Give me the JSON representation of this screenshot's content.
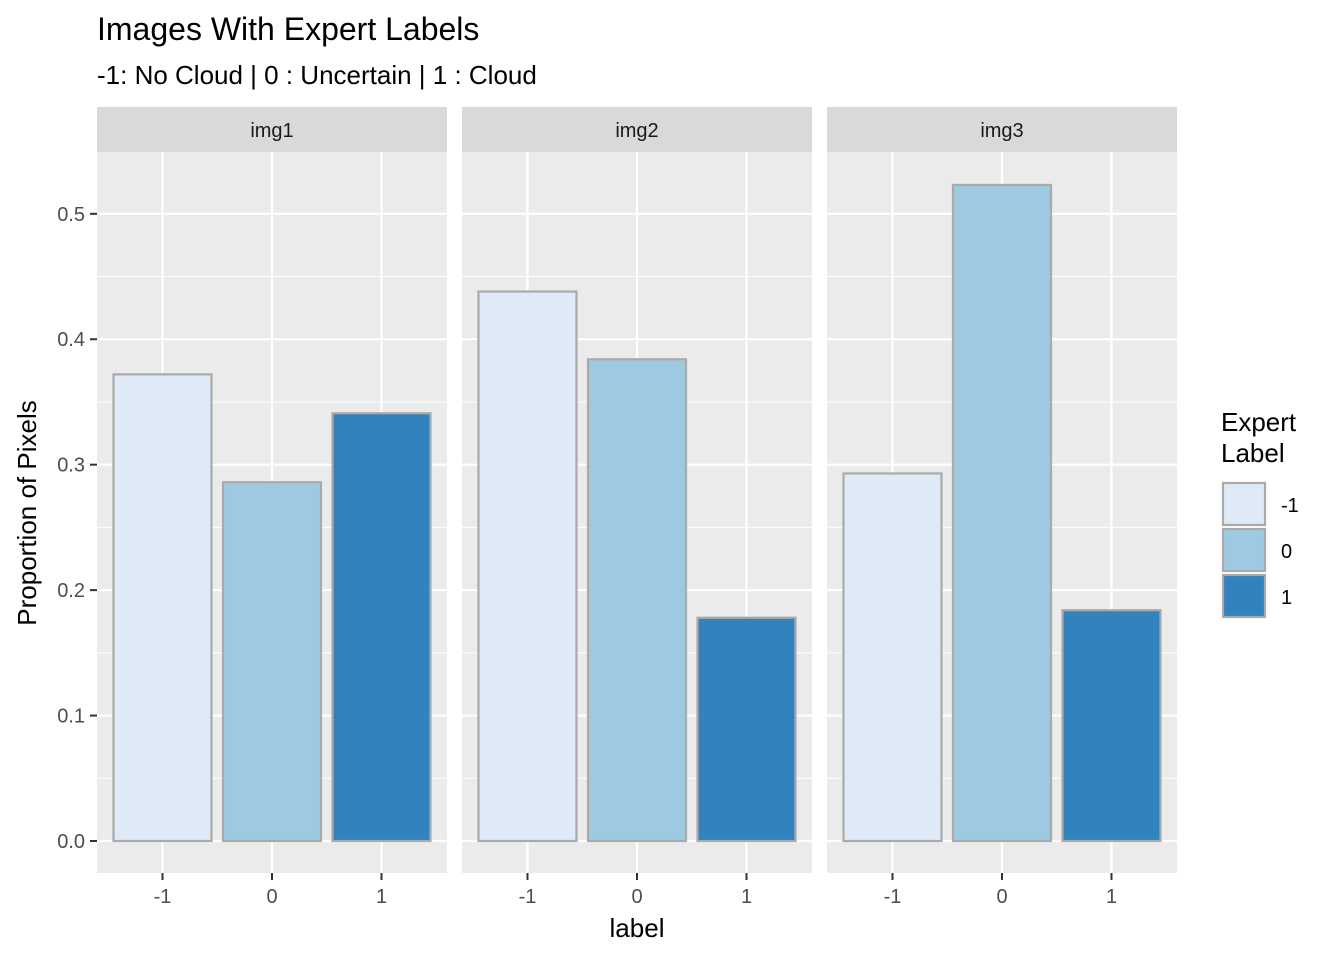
{
  "chart_data": {
    "type": "bar",
    "title": "Images With Expert Labels",
    "subtitle": "-1: No Cloud | 0 : Uncertain | 1 : Cloud",
    "xlabel": "label",
    "ylabel": "Proportion of Pixels",
    "categories": [
      "-1",
      "0",
      "1"
    ],
    "ylim": [
      0,
      0.55
    ],
    "yticks": [
      "0.0",
      "0.1",
      "0.2",
      "0.3",
      "0.4",
      "0.5"
    ],
    "grid": true,
    "legend": {
      "title_lines": [
        "Expert",
        "Label"
      ],
      "position": "right",
      "entries": [
        "-1",
        "0",
        "1"
      ]
    },
    "colors": {
      "-1": "#deebf7",
      "0": "#9ecae1",
      "1": "#3182bd",
      "bar_border": "#aaaaaa",
      "panel_bg": "#ebebeb",
      "strip_bg": "#d9d9d9",
      "grid": "#ffffff"
    },
    "facets": [
      {
        "name": "img1",
        "values": [
          0.372,
          0.286,
          0.341
        ]
      },
      {
        "name": "img2",
        "values": [
          0.438,
          0.384,
          0.178
        ]
      },
      {
        "name": "img3",
        "values": [
          0.293,
          0.523,
          0.184
        ]
      }
    ]
  }
}
